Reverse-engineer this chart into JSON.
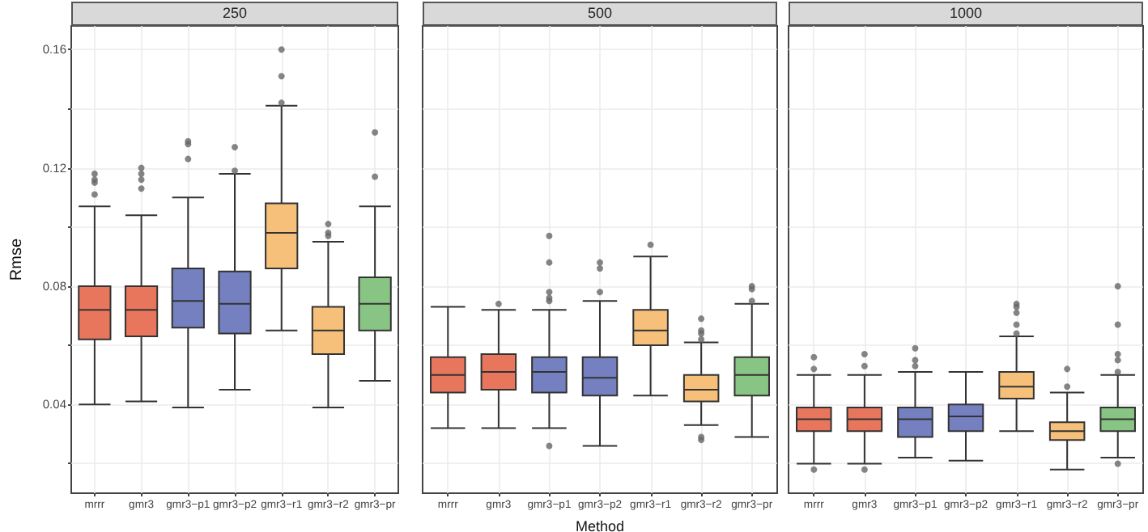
{
  "chart_data": [
    {
      "type": "box",
      "title": "250",
      "ylabel": "Rmse",
      "categories": [
        "mrrr",
        "gmr3",
        "gmr3−p1",
        "gmr3−p2",
        "gmr3−r1",
        "gmr3−r2",
        "gmr3−pr"
      ],
      "colors": [
        "#e8765d",
        "#e8765d",
        "#7480bf",
        "#7480bf",
        "#f6c07a",
        "#f6c07a",
        "#88c484"
      ],
      "ylim": [
        0.01,
        0.168
      ],
      "yticks": [
        {
          "value": 0.02,
          "label": null
        },
        0.04,
        {
          "value": 0.06,
          "label": null
        },
        0.08,
        {
          "value": 0.1,
          "label": null
        },
        0.12,
        {
          "value": 0.14,
          "label": null
        },
        0.16
      ],
      "grid": true,
      "boxes": [
        {
          "low": 0.04,
          "q1": 0.062,
          "median": 0.072,
          "q3": 0.08,
          "high": 0.107,
          "outliers": [
            0.118,
            0.116,
            0.115,
            0.111
          ]
        },
        {
          "low": 0.041,
          "q1": 0.063,
          "median": 0.072,
          "q3": 0.08,
          "high": 0.104,
          "outliers": [
            0.12,
            0.118,
            0.116,
            0.113
          ]
        },
        {
          "low": 0.039,
          "q1": 0.066,
          "median": 0.075,
          "q3": 0.086,
          "high": 0.11,
          "outliers": [
            0.129,
            0.128,
            0.123
          ]
        },
        {
          "low": 0.045,
          "q1": 0.064,
          "median": 0.074,
          "q3": 0.085,
          "high": 0.118,
          "outliers": [
            0.127,
            0.119
          ]
        },
        {
          "low": 0.065,
          "q1": 0.086,
          "median": 0.098,
          "q3": 0.108,
          "high": 0.141,
          "outliers": [
            0.16,
            0.151,
            0.142
          ]
        },
        {
          "low": 0.039,
          "q1": 0.057,
          "median": 0.065,
          "q3": 0.073,
          "high": 0.095,
          "outliers": [
            0.101,
            0.098,
            0.097
          ]
        },
        {
          "low": 0.048,
          "q1": 0.065,
          "median": 0.074,
          "q3": 0.083,
          "high": 0.107,
          "outliers": [
            0.132,
            0.117
          ]
        }
      ]
    },
    {
      "type": "box",
      "title": "500",
      "xlabel": "Method",
      "categories": [
        "mrrr",
        "gmr3",
        "gmr3−p1",
        "gmr3−p2",
        "gmr3−r1",
        "gmr3−r2",
        "gmr3−pr"
      ],
      "colors": [
        "#e8765d",
        "#e8765d",
        "#7480bf",
        "#7480bf",
        "#f6c07a",
        "#f6c07a",
        "#88c484"
      ],
      "ylim": [
        0.01,
        0.168
      ],
      "yticks": [
        {
          "value": 0.02,
          "label": null
        },
        0.04,
        {
          "value": 0.06,
          "label": null
        },
        0.08,
        {
          "value": 0.1,
          "label": null
        },
        0.12,
        {
          "value": 0.14,
          "label": null
        },
        0.16
      ],
      "grid": true,
      "tick_labels": "x",
      "boxes": [
        {
          "low": 0.032,
          "q1": 0.044,
          "median": 0.05,
          "q3": 0.056,
          "high": 0.073
        },
        {
          "low": 0.032,
          "q1": 0.045,
          "median": 0.051,
          "q3": 0.057,
          "high": 0.072,
          "outliers": [
            0.074
          ]
        },
        {
          "low": 0.032,
          "q1": 0.044,
          "median": 0.051,
          "q3": 0.056,
          "high": 0.072,
          "outliers": [
            0.097,
            0.088,
            0.078,
            0.076,
            0.075,
            0.026
          ]
        },
        {
          "low": 0.026,
          "q1": 0.043,
          "median": 0.049,
          "q3": 0.056,
          "high": 0.075,
          "outliers": [
            0.088,
            0.086,
            0.078
          ]
        },
        {
          "low": 0.043,
          "q1": 0.06,
          "median": 0.065,
          "q3": 0.072,
          "high": 0.09,
          "outliers": [
            0.094
          ]
        },
        {
          "low": 0.033,
          "q1": 0.041,
          "median": 0.045,
          "q3": 0.05,
          "high": 0.061,
          "outliers": [
            0.069,
            0.065,
            0.064,
            0.062,
            0.029,
            0.028
          ]
        },
        {
          "low": 0.029,
          "q1": 0.043,
          "median": 0.05,
          "q3": 0.056,
          "high": 0.074,
          "outliers": [
            0.08,
            0.079,
            0.075
          ]
        }
      ]
    },
    {
      "type": "box",
      "title": "1000",
      "categories": [
        "mrrr",
        "gmr3",
        "gmr3−p1",
        "gmr3−p2",
        "gmr3−r1",
        "gmr3−r2",
        "gmr3−pr"
      ],
      "colors": [
        "#e8765d",
        "#e8765d",
        "#7480bf",
        "#7480bf",
        "#f6c07a",
        "#f6c07a",
        "#88c484"
      ],
      "ylim": [
        0.01,
        0.168
      ],
      "yticks": [
        {
          "value": 0.02,
          "label": null
        },
        0.04,
        {
          "value": 0.06,
          "label": null
        },
        0.08,
        {
          "value": 0.1,
          "label": null
        },
        0.12,
        {
          "value": 0.14,
          "label": null
        },
        0.16
      ],
      "grid": true,
      "tick_labels": "x",
      "boxes": [
        {
          "low": 0.02,
          "q1": 0.031,
          "median": 0.035,
          "q3": 0.039,
          "high": 0.05,
          "outliers": [
            0.056,
            0.052,
            0.018
          ]
        },
        {
          "low": 0.02,
          "q1": 0.031,
          "median": 0.035,
          "q3": 0.039,
          "high": 0.05,
          "outliers": [
            0.057,
            0.053,
            0.018
          ]
        },
        {
          "low": 0.022,
          "q1": 0.029,
          "median": 0.035,
          "q3": 0.039,
          "high": 0.051,
          "outliers": [
            0.059,
            0.055,
            0.053
          ]
        },
        {
          "low": 0.021,
          "q1": 0.031,
          "median": 0.036,
          "q3": 0.04,
          "high": 0.051
        },
        {
          "low": 0.031,
          "q1": 0.042,
          "median": 0.046,
          "q3": 0.051,
          "high": 0.063,
          "outliers": [
            0.074,
            0.073,
            0.071,
            0.067,
            0.064
          ]
        },
        {
          "low": 0.018,
          "q1": 0.028,
          "median": 0.031,
          "q3": 0.034,
          "high": 0.044,
          "outliers": [
            0.052,
            0.046
          ]
        },
        {
          "low": 0.022,
          "q1": 0.031,
          "median": 0.035,
          "q3": 0.039,
          "high": 0.05,
          "outliers": [
            0.08,
            0.067,
            0.057,
            0.055,
            0.051,
            0.02
          ]
        }
      ]
    }
  ]
}
